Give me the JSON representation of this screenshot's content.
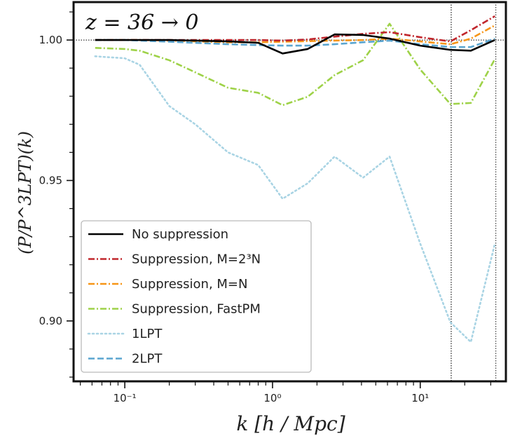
{
  "chart_data": {
    "type": "line",
    "title": "",
    "annotation": "z = 36 → 0",
    "xlabel": "k [h / Mpc]",
    "ylabel": "(P/P^3LPT)(k)",
    "x_scale": "log",
    "xlim": [
      0.045,
      38
    ],
    "ylim": [
      0.8785,
      1.0135
    ],
    "x_ticks": [
      0.1,
      1,
      10
    ],
    "x_tick_labels": [
      "10⁻¹",
      "10⁰",
      "10¹"
    ],
    "y_ticks": [
      0.9,
      0.95,
      1.0
    ],
    "y_tick_labels": [
      "0.90",
      "0.95",
      "1.00"
    ],
    "reference_hline": 1.0,
    "reference_vlines": [
      16.2,
      32.5
    ],
    "legend_position": "lower-left",
    "series": [
      {
        "name": "No suppression",
        "color": "#000000",
        "dash": "solid",
        "x": [
          0.063,
          0.1,
          0.126,
          0.2,
          0.3,
          0.5,
          0.8,
          1.17,
          1.73,
          2.63,
          4.1,
          6.2,
          10,
          16,
          22,
          32
        ],
        "y": [
          1.0,
          1.0,
          1.0,
          1.0,
          0.9998,
          0.9995,
          0.999,
          0.9952,
          0.9968,
          1.002,
          1.0018,
          1.0005,
          0.998,
          0.9965,
          0.9962,
          1.0
        ]
      },
      {
        "name": "Suppression, M=2³N",
        "color": "#c0262c",
        "dash": "dashdot",
        "x": [
          0.063,
          0.1,
          0.126,
          0.2,
          0.3,
          0.5,
          0.8,
          1.17,
          1.73,
          2.63,
          4.1,
          6.2,
          10,
          16,
          22,
          32
        ],
        "y": [
          1.0,
          1.0,
          1.0,
          1.0,
          1.0,
          1.0,
          1.0,
          0.9998,
          1.0002,
          1.0012,
          1.0022,
          1.0028,
          1.001,
          0.9995,
          1.0035,
          1.0085
        ]
      },
      {
        "name": "Suppression, M=N",
        "color": "#f79517",
        "dash": "dashdot",
        "x": [
          0.063,
          0.1,
          0.126,
          0.2,
          0.3,
          0.5,
          0.8,
          1.17,
          1.73,
          2.63,
          4.1,
          6.2,
          10,
          16,
          22,
          32
        ],
        "y": [
          1.0,
          1.0,
          1.0,
          0.9998,
          0.9995,
          0.9992,
          0.9992,
          0.9994,
          0.9996,
          0.9998,
          1.0,
          1.0005,
          0.9995,
          0.9985,
          1.0005,
          1.0052
        ]
      },
      {
        "name": "Suppression, FastPM",
        "color": "#9ed248",
        "dash": "dashdot",
        "x": [
          0.063,
          0.1,
          0.126,
          0.2,
          0.3,
          0.5,
          0.8,
          1.17,
          1.73,
          2.63,
          4.1,
          6.2,
          10,
          16,
          22,
          32
        ],
        "y": [
          0.9972,
          0.9968,
          0.9962,
          0.9928,
          0.9885,
          0.983,
          0.9812,
          0.9768,
          0.9798,
          0.9875,
          0.9928,
          1.0058,
          0.9895,
          0.9772,
          0.9776,
          0.9932
        ]
      },
      {
        "name": "1LPT",
        "color": "#a9d4e4",
        "dash": "dotted",
        "x": [
          0.063,
          0.1,
          0.126,
          0.2,
          0.3,
          0.5,
          0.8,
          1.17,
          1.73,
          2.63,
          4.1,
          6.2,
          10,
          16,
          22,
          32
        ],
        "y": [
          0.9942,
          0.9935,
          0.9912,
          0.9765,
          0.97,
          0.96,
          0.9555,
          0.9435,
          0.949,
          0.9585,
          0.951,
          0.9585,
          0.9275,
          0.8995,
          0.8925,
          0.9275
        ]
      },
      {
        "name": "2LPT",
        "color": "#5aa5d0",
        "dash": "dashed",
        "x": [
          0.063,
          0.1,
          0.126,
          0.2,
          0.3,
          0.5,
          0.8,
          1.17,
          1.73,
          2.63,
          4.1,
          6.2,
          10,
          16,
          22,
          32
        ],
        "y": [
          1.0,
          1.0,
          0.9998,
          0.9994,
          0.999,
          0.9985,
          0.9982,
          0.998,
          0.998,
          0.9985,
          0.9992,
          0.9998,
          0.9985,
          0.9975,
          0.9975,
          1.0005
        ]
      }
    ]
  }
}
